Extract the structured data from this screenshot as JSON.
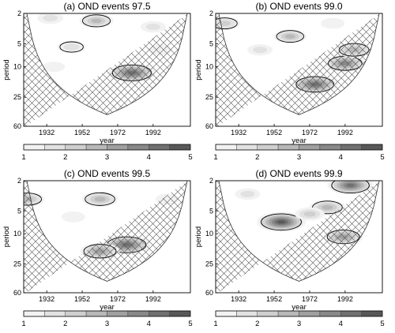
{
  "figure": {
    "colorbar_ticks": [
      "1",
      "2",
      "3",
      "4",
      "5"
    ],
    "colorbar_range": [
      1,
      5
    ],
    "shade_colors": [
      "#ffffff",
      "#f2f2f2",
      "#e2e2e2",
      "#cfcfcf",
      "#b8b8b8",
      "#a0a0a0",
      "#888888",
      "#707070",
      "#585858"
    ]
  },
  "chart_data": [
    {
      "type": "heatmap",
      "title": "(a) OND events 97.5",
      "xlabel": "year",
      "ylabel": "period",
      "x_ticks": [
        "1932",
        "1952",
        "1972",
        "1992"
      ],
      "y_ticks": [
        "2",
        "5",
        "10",
        "25",
        "60"
      ],
      "x_range": [
        1919,
        2013
      ],
      "y_range": [
        2,
        60
      ],
      "y_scale": "log",
      "hatched_outside_cone": true,
      "hotspots": [
        {
          "year": 1980,
          "period": 12,
          "peak": 4.6,
          "significant": true
        },
        {
          "year": 1960,
          "period": 2.5,
          "peak": 2.9,
          "significant": true
        },
        {
          "year": 1946,
          "period": 5.5,
          "peak": 2.2,
          "significant": true
        },
        {
          "year": 1934,
          "period": 2.3,
          "peak": 1.9,
          "significant": false
        },
        {
          "year": 1992,
          "period": 3,
          "peak": 1.8,
          "significant": false
        },
        {
          "year": 1996,
          "period": 6,
          "peak": 1.6,
          "significant": false
        },
        {
          "year": 1936,
          "period": 10,
          "peak": 1.4,
          "significant": false
        }
      ],
      "colorbar_range": [
        1,
        5
      ]
    },
    {
      "type": "heatmap",
      "title": "(b) OND events 99.0",
      "xlabel": "year",
      "ylabel": "period",
      "x_ticks": [
        "1932",
        "1952",
        "1972",
        "1992"
      ],
      "y_ticks": [
        "2",
        "5",
        "10",
        "25",
        "60"
      ],
      "x_range": [
        1919,
        2013
      ],
      "y_range": [
        2,
        60
      ],
      "y_scale": "log",
      "hatched_outside_cone": true,
      "hotspots": [
        {
          "year": 1975,
          "period": 17,
          "peak": 4.4,
          "significant": true
        },
        {
          "year": 1992,
          "period": 9,
          "peak": 3.8,
          "significant": true
        },
        {
          "year": 1997,
          "period": 6,
          "peak": 3.2,
          "significant": true
        },
        {
          "year": 1961,
          "period": 4,
          "peak": 2.8,
          "significant": true
        },
        {
          "year": 1924,
          "period": 2.7,
          "peak": 2.5,
          "significant": true
        },
        {
          "year": 1944,
          "period": 6,
          "peak": 1.8,
          "significant": false
        },
        {
          "year": 1985,
          "period": 2.7,
          "peak": 1.6,
          "significant": false
        }
      ],
      "colorbar_range": [
        1,
        5
      ]
    },
    {
      "type": "heatmap",
      "title": "(c) OND events 99.5",
      "xlabel": "year",
      "ylabel": "period",
      "x_ticks": [
        "1932",
        "1952",
        "1972",
        "1992"
      ],
      "y_ticks": [
        "2",
        "5",
        "10",
        "25",
        "60"
      ],
      "x_range": [
        1919,
        2013
      ],
      "y_range": [
        2,
        60
      ],
      "y_scale": "log",
      "hatched_outside_cone": true,
      "hotspots": [
        {
          "year": 1977,
          "period": 14,
          "peak": 4.6,
          "significant": true
        },
        {
          "year": 1962,
          "period": 17,
          "peak": 3.6,
          "significant": true
        },
        {
          "year": 1962,
          "period": 3.5,
          "peak": 3.2,
          "significant": true
        },
        {
          "year": 1921,
          "period": 3.5,
          "peak": 3.0,
          "significant": true
        },
        {
          "year": 1947,
          "period": 6,
          "peak": 1.6,
          "significant": false
        },
        {
          "year": 2000,
          "period": 3.5,
          "peak": 1.6,
          "significant": false
        }
      ],
      "colorbar_range": [
        1,
        5
      ]
    },
    {
      "type": "heatmap",
      "title": "(d) OND events 99.9",
      "xlabel": "year",
      "ylabel": "period",
      "x_ticks": [
        "1932",
        "1952",
        "1972",
        "1992"
      ],
      "y_ticks": [
        "2",
        "5",
        "10",
        "25",
        "60"
      ],
      "x_range": [
        1919,
        2013
      ],
      "y_range": [
        2,
        60
      ],
      "y_scale": "log",
      "hatched_outside_cone": true,
      "hotspots": [
        {
          "year": 1956,
          "period": 7,
          "peak": 4.8,
          "significant": true
        },
        {
          "year": 1995,
          "period": 2.3,
          "peak": 4.4,
          "significant": true
        },
        {
          "year": 1991,
          "period": 11,
          "peak": 3.6,
          "significant": true
        },
        {
          "year": 1982,
          "period": 4.5,
          "peak": 3.2,
          "significant": true
        },
        {
          "year": 1972,
          "period": 5.5,
          "peak": 2.4,
          "significant": false
        },
        {
          "year": 1937,
          "period": 3,
          "peak": 1.8,
          "significant": false
        }
      ],
      "colorbar_range": [
        1,
        5
      ]
    }
  ]
}
